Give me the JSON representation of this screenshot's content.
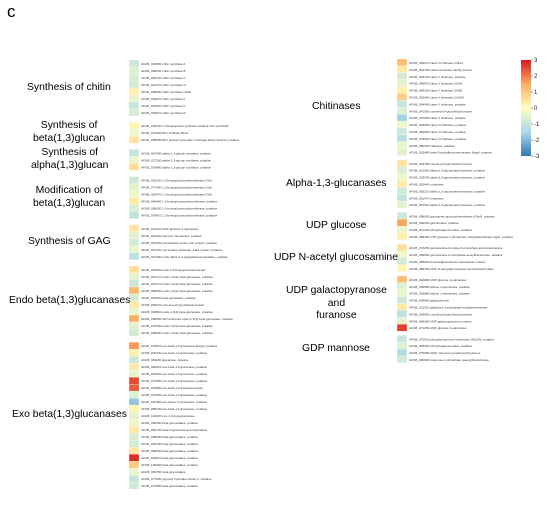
{
  "panel_letter": "c",
  "chart_data": {
    "type": "heatmap",
    "colorbar": {
      "ticks": [
        3,
        2,
        1,
        0,
        -1,
        -2,
        -3
      ],
      "range": [
        -3,
        3
      ],
      "colors": {
        "high": "#d7191c",
        "mid_high": "#fdae61",
        "mid": "#ffffbf",
        "mid_low": "#abd9e9",
        "low": "#2c7bb6"
      }
    },
    "panels": [
      {
        "groups": [
          {
            "label": "Synthesis of chitin",
            "genes": [
              {
                "id": "AFUB_016680 chitin synthase A",
                "value": -0.9
              },
              {
                "id": "AFUB_086640 chitin synthase B",
                "value": -0.6
              },
              {
                "id": "AFUB_046720 chitin synthase C",
                "value": -0.7
              },
              {
                "id": "AFUB_012370 chitin synthase G",
                "value": -0.8
              },
              {
                "id": "AFUB_026080 chitin synthase ChsE",
                "value": 0.3
              },
              {
                "id": "AFUB_029070 chitin synthase F",
                "value": -0.4
              },
              {
                "id": "AFUB_081820 chitin synthase F",
                "value": -1.0
              },
              {
                "id": "AFUB_054810 chitin synthase D",
                "value": -0.7
              }
            ]
          },
          {
            "label": "Synthesis of\nbeta(1,3)glucan",
            "genes": [
              {
                "id": "AFUB_078430 1,3-beta-glucan synthase catalytic sub unit FksP",
                "value": 0.2
              },
              {
                "id": "AFUB_072830 Rho GTPase Rho1",
                "value": -0.3
              },
              {
                "id": "AFUB_055580 Rho guanyl nucleotide exchange factor (Rom2), putative",
                "value": 0.5
              }
            ]
          },
          {
            "label": "Synthesis of\nalpha(1,3)glucan",
            "genes": [
              {
                "id": "AFUB_067490 alpha-1,3-glucan synthase, putative",
                "value": -1.0
              },
              {
                "id": "AFUB_027330 alpha-1,3-glucan synthase, putative",
                "value": -0.4
              },
              {
                "id": "AFUB_014890 alpha-1,3-glucan synthase, putative",
                "value": 0.6
              }
            ]
          },
          {
            "label": "Modification of\nbeta(1,3)glucan",
            "genes": [
              {
                "id": "AFUB_016250 1,3-beta-glucanosyltransferase Gel1",
                "value": -0.9
              },
              {
                "id": "AFUB_077400 1,3-beta-glucanosyltransferase Gel2",
                "value": -0.5
              },
              {
                "id": "AFUB_026470 1,3-beta-glucanosyltransferase Gel3",
                "value": -0.3
              },
              {
                "id": "AFUB_084460 1,3-beta-glucanosyltransferase, putative",
                "value": 0.4
              },
              {
                "id": "AFUB_006630 1,3-beta-glucanosyltransferase, putative",
                "value": -0.7
              },
              {
                "id": "AFUB_079410 1,3-beta-glucanosyltransferase, putative",
                "value": -1.1
              }
            ]
          },
          {
            "label": "Synthesis of GAG",
            "genes": [
              {
                "id": "AFUB_041210 UDP-glucose 4-epimerase",
                "value": 0.5
              },
              {
                "id": "AFUB_041220 glycosyl transferase, putative",
                "value": -0.5
              },
              {
                "id": "AFUB_041230 extracellular serine-rich protein, putative",
                "value": -0.8
              },
              {
                "id": "AFUB_041240 cell surface spherulin 4-like protein, putative",
                "value": -0.4
              },
              {
                "id": "AFUB_041250 endo-alpha-1,4-polygalactosaminidase, putative",
                "value": -1.2
              }
            ]
          },
          {
            "label": "Endo beta(1,3)glucanases",
            "genes": [
              {
                "id": "AFUB_004560 endo-1,3-beta-glucanase Engl1",
                "value": 0.6
              },
              {
                "id": "AFUB_061710 endo-1,3(4)-beta-glucanase, putative",
                "value": -0.5
              },
              {
                "id": "AFUB_001710 endo-1,3(4)-beta-glucanase, putative",
                "value": -0.9
              },
              {
                "id": "AFUB_089620 endo-1,3(4)-beta-glucanase, putative",
                "value": 1.3
              },
              {
                "id": "AFUB_081660 beta-glucanase, putative",
                "value": -0.7
              },
              {
                "id": "AFUB_084070 conserved hypothetical protein",
                "value": 0.4
              },
              {
                "id": "AFUB_093810 endo-1,3(4)-beta-glucanase, putative",
                "value": -0.4
              },
              {
                "id": "AFUB_038660 GPI anchored endo-1,3(4)-beta-glucanase, putative",
                "value": 1.5
              },
              {
                "id": "AFUB_070290 endo-1,3(4)-beta-glucanase, putative",
                "value": -0.5
              },
              {
                "id": "AFUB_005640 endo-1,3(4)-beta-glucanase, putative",
                "value": -0.8
              }
            ]
          },
          {
            "label": "Exo beta(1,3)glucanases",
            "genes": [
              {
                "id": "AFUB_034010 exo-beta-1,3-glucanase (Exg2), putative",
                "value": 1.7
              },
              {
                "id": "AFUB_070230 exo-beta-1,3-glucanase, putative",
                "value": 0.3
              },
              {
                "id": "AFUB_081180 glucanase, putative",
                "value": -0.9
              },
              {
                "id": "AFUB_025210 exo-beta-1,6-glucanase, putative",
                "value": 0.4
              },
              {
                "id": "AFUB_001500 exo-beta-1,3-glucanase, putative",
                "value": -0.4
              },
              {
                "id": "AFUB_077960 exo-beta-1,3-glucanase, putative",
                "value": 2.5
              },
              {
                "id": "AFUB_010880 exo-beta-1,3-glucanase Exg0",
                "value": 2.3
              },
              {
                "id": "AFUB_041650 exo-beta-1,3-glucanase, putative",
                "value": -0.6
              },
              {
                "id": "AFUB_011480 exo-beta-1,3-glucanase, putative",
                "value": -1.8
              },
              {
                "id": "AFUB_089700 exo-beta-1,3-glucanase, putative",
                "value": 0.2
              },
              {
                "id": "AFUB_101620 exo-1,3-beta-glucanase",
                "value": -0.5
              },
              {
                "id": "AFUB_030180 beta-glucosidase, putative",
                "value": -0.3
              },
              {
                "id": "AFUB_081720 beta-D-glucoside glucohydrolase",
                "value": 0.4
              },
              {
                "id": "AFUB_086600 beta-glucosidase, putative",
                "value": -0.7
              },
              {
                "id": "AFUB_016780 beta-glucosidase, putative",
                "value": -0.8
              },
              {
                "id": "AFUB_080540 beta-glucosidase, putative",
                "value": 0.5
              },
              {
                "id": "AFUB_084610 beta-glucosidase, putative",
                "value": 2.8
              },
              {
                "id": "AFUB_100260 beta-glucosidase, putative",
                "value": 1.0
              },
              {
                "id": "AFUB_054780 beta-glucosidase",
                "value": -0.4
              },
              {
                "id": "AFUB_077600 glycosyl hydrolase family 3, putative",
                "value": -1.0
              },
              {
                "id": "AFUB_074890 beta-glucosidase, putative",
                "value": -0.9
              }
            ]
          }
        ]
      },
      {
        "groups": [
          {
            "label": "Chitinases",
            "genes": [
              {
                "id": "AFUB_002270 class III chitinase ChiA1",
                "value": 1.2
              },
              {
                "id": "AFUB_044700 chitinosuccinase family protein",
                "value": 0.4
              },
              {
                "id": "AFUB_046720 class V chitinase, putative",
                "value": -0.8
              },
              {
                "id": "AFUB_066670 class V chitinase ChiA2",
                "value": -0.5
              },
              {
                "id": "AFUB_080200 class V chitinase ChiB1",
                "value": 0.3
              },
              {
                "id": "AFUB_002460 class V chitinase Chi100",
                "value": 0.9
              },
              {
                "id": "AFUB_064400 class V chitinase, putative",
                "value": -1.0
              },
              {
                "id": "AFUB_041990 conserved hypothetical protein",
                "value": -0.6
              },
              {
                "id": "AFUB_007900 class V chitinase, putative",
                "value": -1.6
              },
              {
                "id": "AFUB_046600 class III chitinase, putative",
                "value": -0.3
              },
              {
                "id": "AFUB_060800 class III chitinase, putative",
                "value": -0.9
              },
              {
                "id": "AFUB_076650 class III chitinase, putative",
                "value": -1.3
              },
              {
                "id": "AFUB_060200 chitinase, putative",
                "value": -0.4
              },
              {
                "id": "AFUB_002480 beta-N-acetylhexosaminidase NagA, putative",
                "value": -0.5
              }
            ]
          },
          {
            "label": "Alpha-1,3-glucanases",
            "genes": [
              {
                "id": "AFUB_003760 conserved hypothetical protein",
                "value": 0.5
              },
              {
                "id": "AFUB_021050 alpha-1,3-glucanase/mutanase, putative",
                "value": -0.7
              },
              {
                "id": "AFUB_033240 alpha-1,3-glucanase/mutanase, putative",
                "value": -0.3
              },
              {
                "id": "AFUB_052440 mutanase",
                "value": 0.4
              },
              {
                "id": "AFUB_083210 alpha-1,3-glucanase/mutanase, putative",
                "value": -0.8
              },
              {
                "id": "AFUB_061470 mutanase",
                "value": -1.1
              },
              {
                "id": "AFUB_067510 alpha-1,3-glucanase/mutanase, putative",
                "value": -0.5
              }
            ]
          },
          {
            "label": "UDP glucose",
            "genes": [
              {
                "id": "AFUB_098060 glycogenin glucosyltransferase (GlnA), putative",
                "value": -0.9
              },
              {
                "id": "AFUB_030330 glucokinase, putative",
                "value": 1.6
              },
              {
                "id": "AFUB_041200 phosphoglucomutase, putative",
                "value": -0.4
              },
              {
                "id": "AFUB_068400 UTP-glucose-1-phosphate uridylyltransferase Ugp1, putative",
                "value": 0.3
              }
            ]
          },
          {
            "label": "UDP N-acetyl glucosamine",
            "genes": [
              {
                "id": "AFUB_072250 glucosamine-fructose-6-phosphate aminotransferase",
                "value": 0.6
              },
              {
                "id": "AFUB_066660 glucosamine 6-phosphate acetyltransferase, putative",
                "value": -0.3
              },
              {
                "id": "AFUB_058940 N-acetylglucosamine-phosphate mutase",
                "value": -0.8
              },
              {
                "id": "AFUB_086750 UDP-N-acetylglucosamine pyrophosphorylase",
                "value": 0.2
              }
            ]
          },
          {
            "label": "UDP galactopyranose\nand\nfuranose",
            "genes": [
              {
                "id": "AFUB_042080 UDP-glucose 4-epimerase",
                "value": 1.2
              },
              {
                "id": "AFUB_035680 aldose 1-epimerase, putative",
                "value": -0.6
              },
              {
                "id": "AFUB_026880 aldose 1-epimerase, putative",
                "value": -0.4
              },
              {
                "id": "AFUB_038850 galactokinase",
                "value": -0.9
              },
              {
                "id": "AFUB_021310 galactose-1-phosphate uridylyltransferase",
                "value": 0.4
              },
              {
                "id": "AFUB_036600 conserved hypothetical protein",
                "value": -1.2
              },
              {
                "id": "AFUB_069380 UDP-galactopyranose mutase",
                "value": -0.5
              },
              {
                "id": "AFUB_071250 UDP-glucose 4-epimerase",
                "value": 2.6
              }
            ]
          },
          {
            "label": "GDP mannose",
            "genes": [
              {
                "id": "AFUB_072510 phosphomannose isomerase (Sec53), putative",
                "value": -1.0
              },
              {
                "id": "AFUB_045200 phosphoglucomutase, putative",
                "value": -0.6
              },
              {
                "id": "AFUB_075680 GDP-mannose pyrophosphorylase A",
                "value": -1.4
              },
              {
                "id": "AFUB_066690 mannose-1-phosphate guanylyltransferase",
                "value": -0.8
              }
            ]
          }
        ]
      }
    ]
  }
}
